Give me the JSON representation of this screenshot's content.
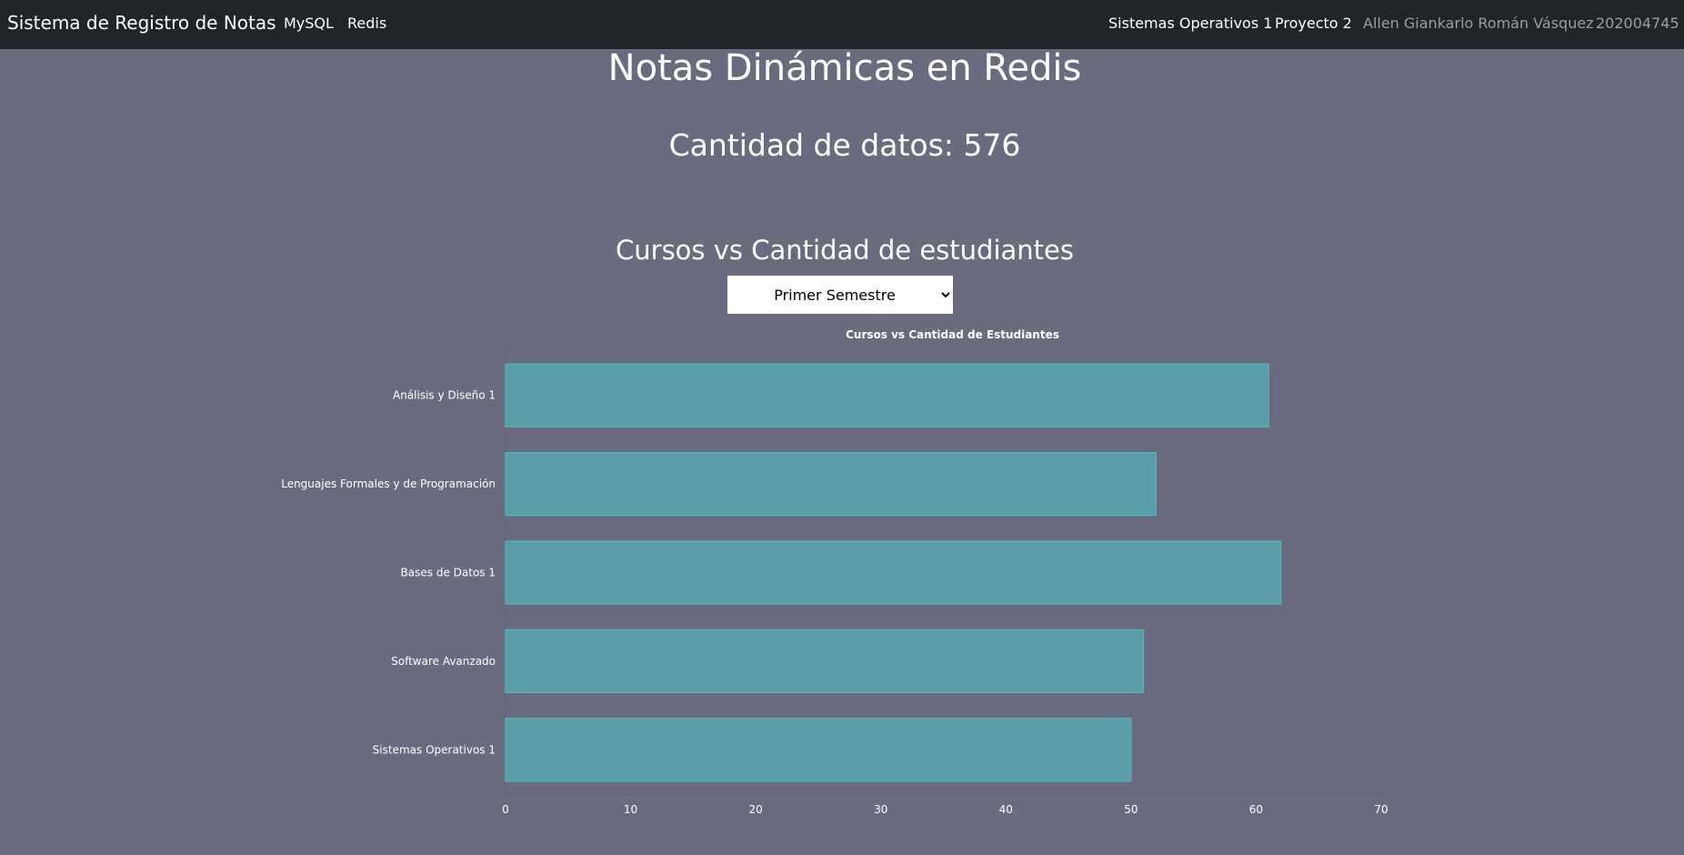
{
  "navbar": {
    "brand": "Sistema de Registro de Notas",
    "links": [
      "MySQL",
      "Redis"
    ],
    "right_links": [
      "Sistemas Operativos 1",
      "Proyecto 2"
    ],
    "author": "Allen Giankarlo Román Vásquez",
    "carnet": "202004745"
  },
  "main": {
    "title": "Notas Dinámicas en Redis",
    "count_label": "Cantidad de datos: 576",
    "section_title": "Cursos vs Cantidad de estudiantes",
    "semester_select": {
      "selected": "Primer Semestre",
      "options": [
        "Primer Semestre"
      ]
    }
  },
  "colors": {
    "page_bg": "#6b6b80",
    "navbar_bg": "#212529",
    "bar_fill": "#589da7",
    "bar_border": "#4bc0c0"
  },
  "chart_data": {
    "type": "bar",
    "orientation": "horizontal",
    "title": "Cursos vs Cantidad de Estudiantes",
    "categories": [
      "Análisis y Diseño 1",
      "Lenguajes Formales y de Programación",
      "Bases de Datos 1",
      "Software Avanzado",
      "Sistemas Operativos 1"
    ],
    "values": [
      61,
      52,
      62,
      51,
      50
    ],
    "xlim": [
      0,
      70
    ],
    "xticks": [
      0,
      10,
      20,
      30,
      40,
      50,
      60,
      70
    ],
    "grid": false,
    "legend": "none"
  }
}
